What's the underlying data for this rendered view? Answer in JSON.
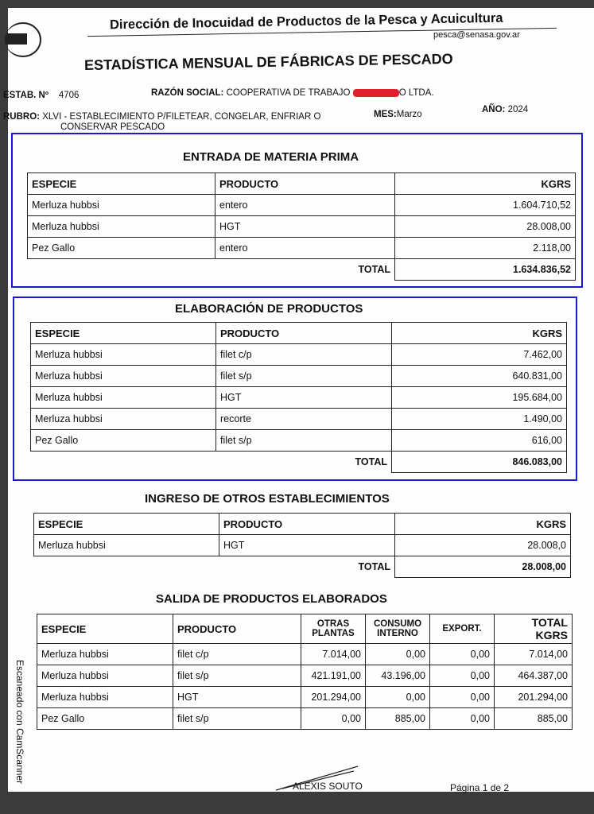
{
  "header": {
    "org": "Dirección de Inocuidad de Productos de la Pesca y Acuicultura",
    "email": "pesca@senasa.gov.ar"
  },
  "title": "ESTADÍSTICA MENSUAL DE FÁBRICAS DE PESCADO",
  "meta": {
    "estab_label": "ESTAB. Nº",
    "estab": "4706",
    "razon_label": "RAZÓN SOCIAL:",
    "razon_pre": "COOPERATIVA DE TRABAJO",
    "razon_post": "O LTDA.",
    "rubro_label": "RUBRO:",
    "rubro": "XLVI - ESTABLECIMIENTO P/FILETEAR, CONGELAR, ENFRIAR O",
    "rubro2": "CONSERVAR PESCADO",
    "mes_label": "MES:",
    "mes": "Marzo",
    "anio_label": "AÑO:",
    "anio": "2024"
  },
  "entrada": {
    "title": "ENTRADA DE MATERIA PRIMA",
    "headers": [
      "ESPECIE",
      "PRODUCTO",
      "KGRS"
    ],
    "rows": [
      [
        "Merluza hubbsi",
        "entero",
        "1.604.710,52"
      ],
      [
        "Merluza hubbsi",
        "HGT",
        "28.008,00"
      ],
      [
        "Pez Gallo",
        "entero",
        "2.118,00"
      ]
    ],
    "total_label": "TOTAL",
    "total": "1.634.836,52"
  },
  "elaboracion": {
    "title": "ELABORACIÓN DE PRODUCTOS",
    "headers": [
      "ESPECIE",
      "PRODUCTO",
      "KGRS"
    ],
    "rows": [
      [
        "Merluza hubbsi",
        "filet c/p",
        "7.462,00"
      ],
      [
        "Merluza hubbsi",
        "filet s/p",
        "640.831,00"
      ],
      [
        "Merluza hubbsi",
        "HGT",
        "195.684,00"
      ],
      [
        "Merluza hubbsi",
        "recorte",
        "1.490,00"
      ],
      [
        "Pez Gallo",
        "filet s/p",
        "616,00"
      ]
    ],
    "total_label": "TOTAL",
    "total": "846.083,00"
  },
  "ingreso": {
    "title": "INGRESO DE OTROS ESTABLECIMIENTOS",
    "headers": [
      "ESPECIE",
      "PRODUCTO",
      "KGRS"
    ],
    "rows": [
      [
        "Merluza hubbsi",
        "HGT",
        "28.008,0"
      ]
    ],
    "total_label": "TOTAL",
    "total": "28.008,00"
  },
  "salida": {
    "title": "SALIDA DE PRODUCTOS ELABORADOS",
    "headers": [
      "ESPECIE",
      "PRODUCTO",
      "OTRAS PLANTAS",
      "CONSUMO INTERNO",
      "EXPORT.",
      "TOTAL KGRS"
    ],
    "rows": [
      [
        "Merluza hubbsi",
        "filet c/p",
        "7.014,00",
        "0,00",
        "0,00",
        "7.014,00"
      ],
      [
        "Merluza hubbsi",
        "filet s/p",
        "421.191,00",
        "43.196,00",
        "0,00",
        "464.387,00"
      ],
      [
        "Merluza hubbsi",
        "HGT",
        "201.294,00",
        "0,00",
        "0,00",
        "201.294,00"
      ],
      [
        "Pez Gallo",
        "filet s/p",
        "0,00",
        "885,00",
        "0,00",
        "885,00"
      ]
    ]
  },
  "footer": {
    "signature": "ALEXIS SOUTO",
    "page": "Página 1 de 2"
  },
  "watermark": "Escaneado con CamScanner"
}
